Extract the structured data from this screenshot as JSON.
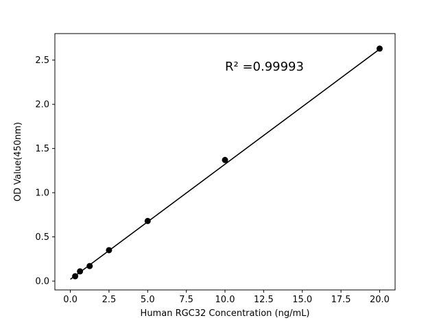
{
  "chart_data": {
    "type": "scatter",
    "title": "",
    "xlabel": "Human RGC32 Concentration (ng/mL)",
    "ylabel": "OD Value(450nm)",
    "x": [
      0.3125,
      0.625,
      1.25,
      2.5,
      5.0,
      10.0,
      20.0
    ],
    "y": [
      0.055,
      0.11,
      0.17,
      0.35,
      0.68,
      1.37,
      2.63
    ],
    "fit_line": {
      "slope": 0.1302,
      "intercept": 0.02,
      "x_start": 0.0,
      "x_end": 20.0
    },
    "annotation": {
      "text": "R² =0.99993",
      "x": 10.0,
      "y": 2.38
    },
    "xlim": [
      -1.0,
      21.0
    ],
    "ylim": [
      -0.1,
      2.8
    ],
    "xticks": [
      0.0,
      2.5,
      5.0,
      7.5,
      10.0,
      12.5,
      15.0,
      17.5,
      20.0
    ],
    "yticks": [
      0.0,
      0.5,
      1.0,
      1.5,
      2.0,
      2.5
    ],
    "tick_decimals": 1,
    "grid": false,
    "legend": null,
    "marker_color": "#000000",
    "line_color": "#000000",
    "axis_color": "#000000",
    "background": "#ffffff"
  }
}
